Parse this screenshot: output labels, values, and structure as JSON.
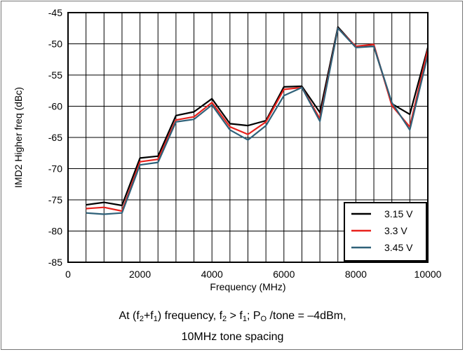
{
  "chart_data": {
    "type": "line",
    "xlabel": "Frequency (MHz)",
    "ylabel": "IMD2 Higher freq (dBc)",
    "xlim": [
      0,
      10000
    ],
    "ylim": [
      -85,
      -45
    ],
    "xticks": [
      0,
      2000,
      4000,
      6000,
      8000,
      10000
    ],
    "yticks": [
      -45,
      -50,
      -55,
      -60,
      -65,
      -70,
      -75,
      -80,
      -85
    ],
    "grid": true,
    "legend_position": "bottom-right",
    "x": [
      500,
      1000,
      1500,
      2000,
      2500,
      3000,
      3500,
      4000,
      4500,
      5000,
      5500,
      6000,
      6500,
      7000,
      7500,
      8000,
      8500,
      9000,
      9500,
      10000
    ],
    "series": [
      {
        "name": "3.15 V",
        "color": "#000000",
        "values": [
          -75.8,
          -75.4,
          -75.9,
          -68.3,
          -68.0,
          -61.5,
          -60.9,
          -58.8,
          -62.8,
          -63.1,
          -62.3,
          -56.9,
          -56.8,
          -61.0,
          -47.3,
          -50.5,
          -50.4,
          -59.6,
          -61.3,
          -50.6
        ]
      },
      {
        "name": "3.3 V",
        "color": "#e8211c",
        "values": [
          -76.4,
          -76.2,
          -76.8,
          -68.9,
          -68.5,
          -62.2,
          -61.7,
          -59.4,
          -63.3,
          -64.5,
          -62.5,
          -57.3,
          -57.0,
          -62.0,
          -47.5,
          -50.4,
          -50.1,
          -59.9,
          -63.3,
          -50.9
        ]
      },
      {
        "name": "3.45 V",
        "color": "#2f6179",
        "values": [
          -77.1,
          -77.3,
          -77.1,
          -69.4,
          -69.0,
          -62.5,
          -62.1,
          -59.8,
          -63.8,
          -65.4,
          -63.1,
          -58.3,
          -57.0,
          -62.4,
          -47.5,
          -50.6,
          -50.4,
          -59.4,
          -63.8,
          -51.8
        ]
      }
    ]
  },
  "caption": {
    "line1_a": "At (f",
    "line1_sub1": "2",
    "line1_b": "+f",
    "line1_sub2": "1",
    "line1_c": ") frequency, f",
    "line1_sub3": "2",
    "line1_d": " > f",
    "line1_sub4": "1",
    "line1_e": "; P",
    "line1_sub5": "O",
    "line1_f": " /tone = –4dBm,",
    "line2": "10MHz tone spacing"
  }
}
